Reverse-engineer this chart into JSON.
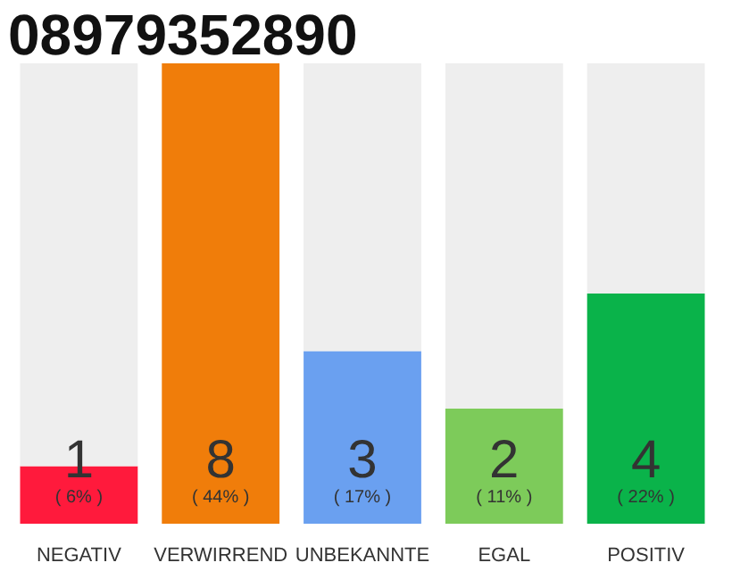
{
  "chart_data": {
    "type": "bar",
    "title": "08979352890",
    "stacked": true,
    "categories": [
      "NEGATIV",
      "VERWIRREND",
      "UNBEKANNTE",
      "EGAL",
      "POSITIV"
    ],
    "series": [
      {
        "colors": [
          "#ff1a3c",
          "#f07d0a",
          "#6aa0f0",
          "#7dcb5a",
          "#0ab34a"
        ],
        "values": [
          1,
          8,
          3,
          2,
          4
        ],
        "value_labels": [
          "1",
          "8",
          "3",
          "2",
          "4"
        ]
      },
      {
        "color": "#eeeeee",
        "values": [
          7,
          0,
          5,
          6,
          4
        ]
      }
    ],
    "annotations": [
      "( 6% )",
      "( 44% )",
      "( 17% )",
      "( 11% )",
      "( 22% )"
    ],
    "grid": false
  }
}
